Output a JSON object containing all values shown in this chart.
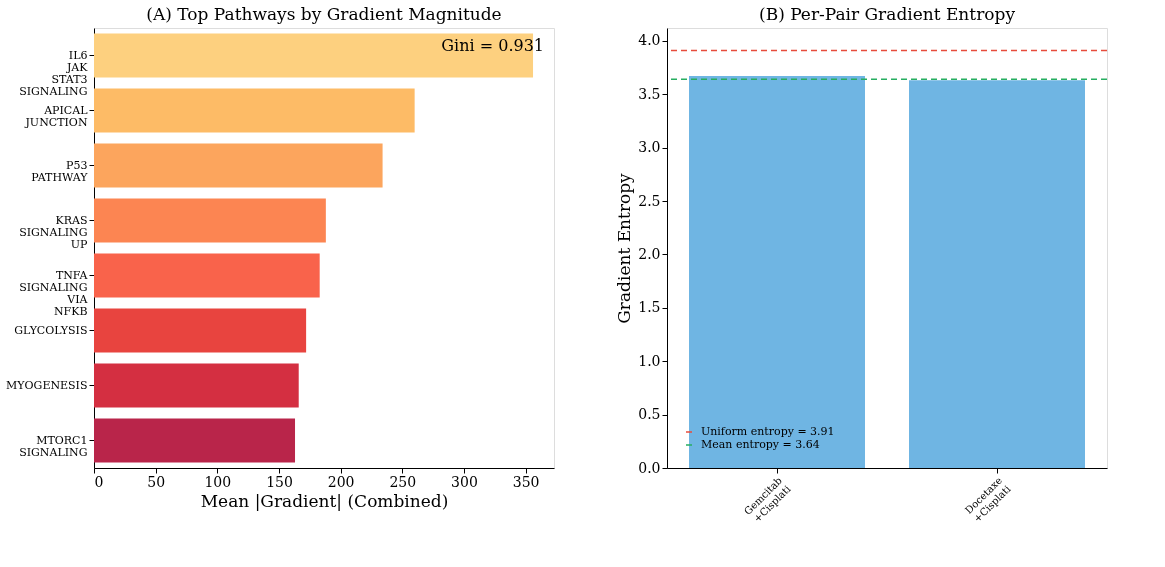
{
  "chart_data": [
    {
      "type": "bar",
      "orientation": "horizontal",
      "title": "(A) Top Pathways by Gradient Magnitude",
      "xlabel": "Mean |Gradient| (Combined)",
      "categories": [
        "IL6 JAK STAT3 SIGNALING",
        "APICAL JUNCTION",
        "P53 PATHWAY",
        "KRAS SIGNALING UP",
        "TNFA SIGNALING VIA NFKB",
        "GLYCOLYSIS",
        "MYOGENESIS",
        "MTORC1 SIGNALING"
      ],
      "values": [
        356,
        260,
        234,
        188,
        183,
        172,
        166,
        163
      ],
      "colors": [
        "#fdd07f",
        "#fdbb66",
        "#fca55d",
        "#fc8552",
        "#f9634b",
        "#e8443f",
        "#d42f41",
        "#b9254a"
      ],
      "xlim": [
        0,
        373
      ],
      "xticks": [
        0,
        50,
        100,
        150,
        200,
        250,
        300,
        350
      ],
      "annotations": [
        "Gini = 0.931"
      ],
      "grid": false
    },
    {
      "type": "bar",
      "title": "(B) Per-Pair Gradient Entropy",
      "ylabel": "Gradient Entropy",
      "categories": [
        "Gemcitab +Cisplati",
        "Docetaxe +Cisplati"
      ],
      "values": [
        3.67,
        3.63
      ],
      "color": "#6fb5e3",
      "ylim": [
        0,
        4.12
      ],
      "yticks": [
        {
          "value": 0,
          "label": "0.0"
        },
        0.5,
        {
          "value": 1,
          "label": "1.0"
        },
        1.5,
        {
          "value": 2,
          "label": "2.0"
        },
        2.5,
        {
          "value": 3,
          "label": "3.0"
        },
        3.5,
        {
          "value": 4,
          "label": "4.0"
        }
      ],
      "ref_lines": [
        {
          "axis": "y",
          "value": 3.91,
          "label": "Uniform entropy = 3.91",
          "color": "#e74c3c",
          "line_style": "dashed"
        },
        {
          "axis": "y",
          "value": 3.64,
          "label": "Mean entropy = 3.64",
          "color": "#27ae60",
          "line_style": "dashed"
        }
      ],
      "grid": false,
      "legend": "bottom left"
    }
  ]
}
